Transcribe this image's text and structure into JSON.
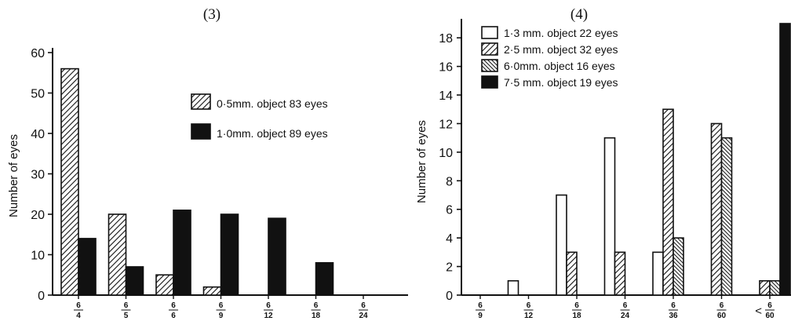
{
  "chart_data": [
    {
      "panel_label": "(3)",
      "type": "bar",
      "ylabel": "Number of eyes",
      "ylim": [
        0,
        60
      ],
      "yticks": [
        "0",
        "10",
        "20",
        "30",
        "40",
        "50",
        "60"
      ],
      "categories": [
        {
          "num": "6",
          "den": "4"
        },
        {
          "num": "6",
          "den": "5"
        },
        {
          "num": "6",
          "den": "6"
        },
        {
          "num": "6",
          "den": "9"
        },
        {
          "num": "6",
          "den": "12"
        },
        {
          "num": "6",
          "den": "18"
        },
        {
          "num": "6",
          "den": "24"
        }
      ],
      "series": [
        {
          "name": "0·5mm. object 83 eyes",
          "fill": "hatch",
          "values": [
            56,
            20,
            5,
            2,
            0,
            0,
            0
          ]
        },
        {
          "name": "1·0mm. object 89 eyes",
          "fill": "solid",
          "values": [
            14,
            7,
            21,
            20,
            19,
            8,
            0
          ]
        }
      ],
      "legend_position": "right-middle"
    },
    {
      "panel_label": "(4)",
      "type": "bar",
      "ylabel": "Number of eyes",
      "ylim": [
        0,
        19
      ],
      "yticks": [
        "0",
        "2",
        "4",
        "6",
        "8",
        "10",
        "12",
        "14",
        "16",
        "18"
      ],
      "categories": [
        {
          "num": "6",
          "den": "9"
        },
        {
          "num": "6",
          "den": "12"
        },
        {
          "num": "6",
          "den": "18"
        },
        {
          "num": "6",
          "den": "24"
        },
        {
          "num": "6",
          "den": "36"
        },
        {
          "num": "6",
          "den": "60"
        },
        {
          "num": "6",
          "den": "60",
          "prefix": "<"
        }
      ],
      "series": [
        {
          "name": "1·3 mm. object 22 eyes",
          "fill": "white",
          "values": [
            0,
            1,
            7,
            11,
            3,
            0,
            0
          ]
        },
        {
          "name": "2·5 mm. object 32 eyes",
          "fill": "hatch",
          "values": [
            0,
            0,
            3,
            3,
            13,
            12,
            1
          ]
        },
        {
          "name": "6·0mm. object 16 eyes",
          "fill": "hatch-dense",
          "values": [
            0,
            0,
            0,
            0,
            4,
            11,
            1
          ]
        },
        {
          "name": "7·5 mm. object 19 eyes",
          "fill": "solid",
          "values": [
            0,
            0,
            0,
            0,
            0,
            0,
            19
          ]
        }
      ],
      "legend_position": "top-left"
    }
  ]
}
